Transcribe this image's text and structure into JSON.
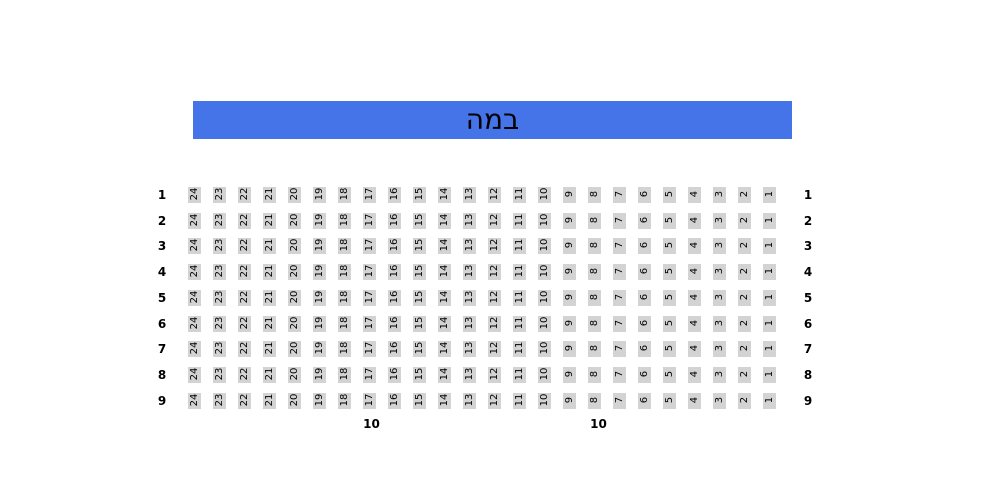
{
  "stage": {
    "label": "במה"
  },
  "colors": {
    "stage_fill": "#4573e8",
    "seat_fill": "#d3d3d3",
    "seat_text": "#000000",
    "label_text": "#000000",
    "background": "#ffffff"
  },
  "seating": {
    "rows": [
      {
        "label": "1",
        "seats": [
          24,
          23,
          22,
          21,
          20,
          19,
          18,
          17,
          16,
          15,
          14,
          13,
          12,
          11,
          10,
          9,
          8,
          7,
          6,
          5,
          4,
          3,
          2,
          1
        ]
      },
      {
        "label": "2",
        "seats": [
          24,
          23,
          22,
          21,
          20,
          19,
          18,
          17,
          16,
          15,
          14,
          13,
          12,
          11,
          10,
          9,
          8,
          7,
          6,
          5,
          4,
          3,
          2,
          1
        ]
      },
      {
        "label": "3",
        "seats": [
          24,
          23,
          22,
          21,
          20,
          19,
          18,
          17,
          16,
          15,
          14,
          13,
          12,
          11,
          10,
          9,
          8,
          7,
          6,
          5,
          4,
          3,
          2,
          1
        ]
      },
      {
        "label": "4",
        "seats": [
          24,
          23,
          22,
          21,
          20,
          19,
          18,
          17,
          16,
          15,
          14,
          13,
          12,
          11,
          10,
          9,
          8,
          7,
          6,
          5,
          4,
          3,
          2,
          1
        ]
      },
      {
        "label": "5",
        "seats": [
          24,
          23,
          22,
          21,
          20,
          19,
          18,
          17,
          16,
          15,
          14,
          13,
          12,
          11,
          10,
          9,
          8,
          7,
          6,
          5,
          4,
          3,
          2,
          1
        ]
      },
      {
        "label": "6",
        "seats": [
          24,
          23,
          22,
          21,
          20,
          19,
          18,
          17,
          16,
          15,
          14,
          13,
          12,
          11,
          10,
          9,
          8,
          7,
          6,
          5,
          4,
          3,
          2,
          1
        ]
      },
      {
        "label": "7",
        "seats": [
          24,
          23,
          22,
          21,
          20,
          19,
          18,
          17,
          16,
          15,
          14,
          13,
          12,
          11,
          10,
          9,
          8,
          7,
          6,
          5,
          4,
          3,
          2,
          1
        ]
      },
      {
        "label": "8",
        "seats": [
          24,
          23,
          22,
          21,
          20,
          19,
          18,
          17,
          16,
          15,
          14,
          13,
          12,
          11,
          10,
          9,
          8,
          7,
          6,
          5,
          4,
          3,
          2,
          1
        ]
      },
      {
        "label": "9",
        "seats": [
          24,
          23,
          22,
          21,
          20,
          19,
          18,
          17,
          16,
          15,
          14,
          13,
          12,
          11,
          10,
          9,
          8,
          7,
          6,
          5,
          4,
          3,
          2,
          1
        ]
      }
    ],
    "row10_markers": [
      "10",
      "10"
    ]
  }
}
